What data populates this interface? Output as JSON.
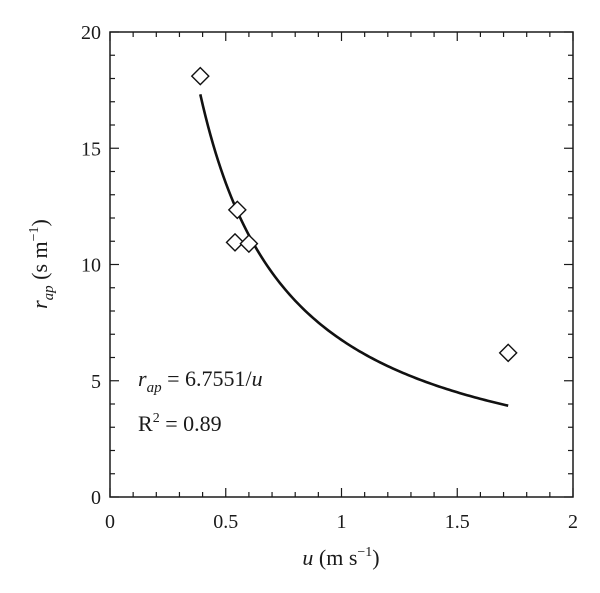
{
  "chart_data": {
    "type": "scatter",
    "title": "",
    "xlim": [
      0,
      2
    ],
    "ylim": [
      0,
      20
    ],
    "x_ticks": [
      0,
      0.5,
      1,
      1.5,
      2
    ],
    "x_tick_labels": [
      "0",
      "0.5",
      "1",
      "1.5",
      "2"
    ],
    "y_ticks": [
      0,
      5,
      10,
      15,
      20
    ],
    "y_tick_labels": [
      "0",
      "5",
      "10",
      "15",
      "20"
    ],
    "xlabel": {
      "symbol": "u",
      "unit_open": " (m s",
      "unit_exp": "−1",
      "unit_close": ")"
    },
    "ylabel": {
      "symbol": "r",
      "subscript": "ap",
      "unit_open": " (s m",
      "unit_exp": "−1",
      "unit_close": ")"
    },
    "grid": false,
    "series": [
      {
        "kind": "points",
        "marker": "open-diamond",
        "x": [
          0.39,
          0.54,
          0.55,
          0.6,
          1.72
        ],
        "y": [
          18.1,
          10.95,
          12.35,
          10.9,
          6.2
        ]
      },
      {
        "kind": "fit-curve",
        "equation": "r_ap = 6.7551/u",
        "coefficient": 6.7551,
        "x_range": [
          0.39,
          1.72
        ]
      }
    ],
    "annotations": {
      "equation": {
        "symbol": "r",
        "subscript": "ap",
        "rest": " = 6.7551/",
        "var": "u"
      },
      "r2": {
        "label": "R",
        "exp": "2",
        "rest": " = 0.89"
      }
    }
  }
}
